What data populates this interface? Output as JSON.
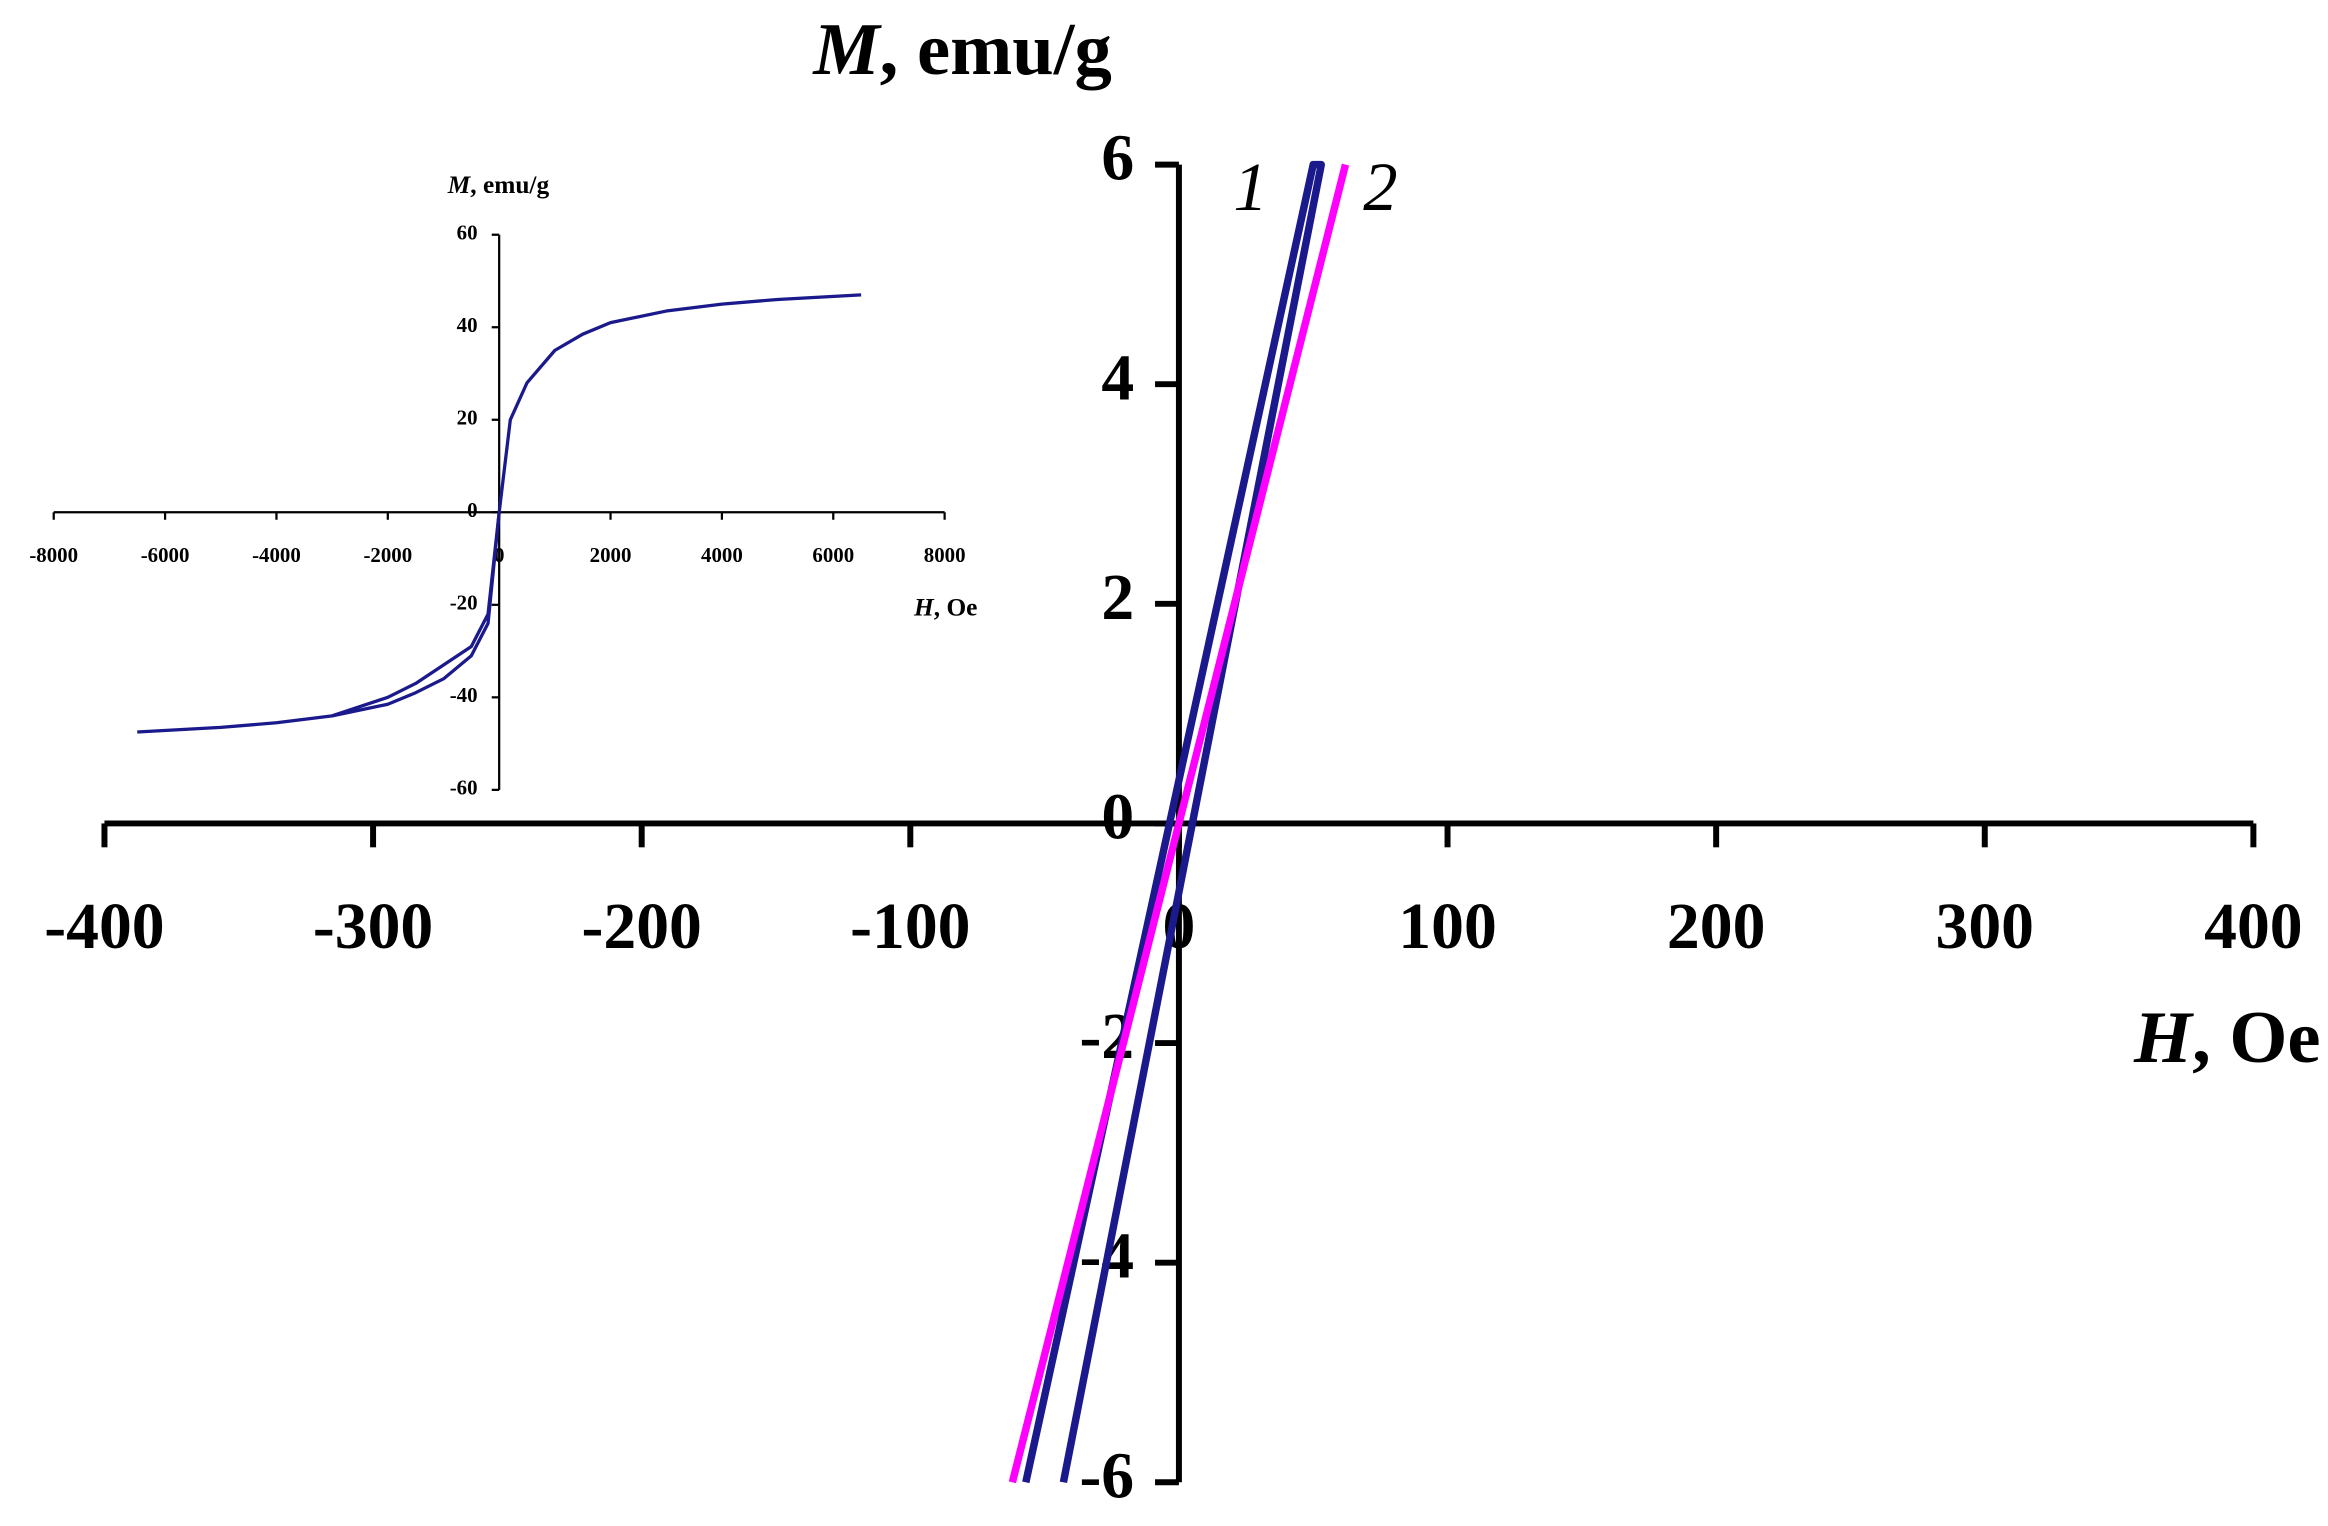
{
  "chart_data": [
    {
      "type": "line",
      "ylabel_symbol": "M",
      "ylabel_unit": ", emu/g",
      "xlabel_symbol": "H",
      "xlabel_unit": ", Oe",
      "xlim": [
        -400,
        400
      ],
      "xticks": [
        -400,
        -300,
        -200,
        -100,
        0,
        100,
        200,
        300,
        400
      ],
      "ylim": [
        -6,
        6
      ],
      "yticks": [
        -6,
        -4,
        -2,
        0,
        2,
        4,
        6
      ],
      "series": [
        {
          "name": "1",
          "color": "#1a1a8c",
          "x": [
            -57,
            50,
            53,
            -43
          ],
          "values": [
            -6,
            6,
            6,
            -6
          ]
        },
        {
          "name": "2",
          "color": "#ff00ff",
          "x": [
            -62,
            62
          ],
          "values": [
            -6,
            6
          ]
        }
      ]
    },
    {
      "type": "line",
      "ylabel_symbol": "M",
      "ylabel_unit": ", emu/g",
      "xlabel_symbol": "H",
      "xlabel_unit": ", Oe",
      "xlim": [
        -8000,
        8000
      ],
      "xticks": [
        -8000,
        -6000,
        -4000,
        -2000,
        0,
        2000,
        4000,
        6000,
        8000
      ],
      "ylim": [
        -60,
        60
      ],
      "yticks": [
        -60,
        -40,
        -20,
        0,
        20,
        40,
        60
      ],
      "series": [
        {
          "color": "#1a1a8c",
          "x": [
            -6500,
            -5000,
            -4000,
            -3000,
            -2000,
            -1500,
            -1000,
            -500,
            -200,
            0,
            200,
            500,
            1000,
            1500,
            2000,
            3000,
            4000,
            5000,
            6500
          ],
          "values": [
            -47.5,
            -46.5,
            -45.5,
            -44,
            -40,
            -37,
            -33,
            -29,
            -22,
            0,
            20,
            28,
            35,
            38.5,
            41,
            43.5,
            45,
            46,
            47
          ]
        },
        {
          "color": "#1a1a8c",
          "x": [
            -3000,
            -2000,
            -1500,
            -1000,
            -500,
            -200,
            0
          ],
          "values": [
            -44,
            -41.5,
            -39,
            -36,
            -31,
            -24,
            0
          ]
        }
      ]
    }
  ]
}
